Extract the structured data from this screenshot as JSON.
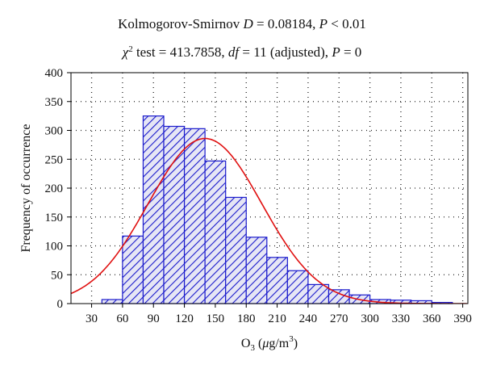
{
  "title": {
    "line1": {
      "a": "Kolmogorov-Smirnov ",
      "D": "D",
      "b": " = 0.08184, ",
      "P": "P",
      "c": " < 0.01"
    },
    "line2": {
      "chi": "χ",
      "sup": "2",
      "a": " test = 413.7858, ",
      "df": "df",
      "b": " = 11 (adjusted), ",
      "P": "P",
      "c": " = 0"
    }
  },
  "axes": {
    "ylabel": "Frequency of occurrence",
    "xlabel": {
      "a": "O",
      "sub": "3",
      "b": " (",
      "mu": "μ",
      "c": "g/m",
      "sup": "3",
      "d": ")"
    }
  },
  "colors": {
    "bar_stroke": "#1a1acc",
    "hatch": "#1a1acc",
    "bar_fill": "#e6e6f5",
    "curve": "#e01010",
    "axis": "#000000"
  },
  "chart_data": {
    "type": "bar",
    "style": "histogram with diagonal hatch and fitted normal curve",
    "bin_width": 20,
    "bins": [
      {
        "start": 20,
        "end": 40,
        "count": 0
      },
      {
        "start": 40,
        "end": 60,
        "count": 7
      },
      {
        "start": 60,
        "end": 80,
        "count": 117
      },
      {
        "start": 80,
        "end": 100,
        "count": 325
      },
      {
        "start": 100,
        "end": 120,
        "count": 307
      },
      {
        "start": 120,
        "end": 140,
        "count": 303
      },
      {
        "start": 140,
        "end": 160,
        "count": 247
      },
      {
        "start": 160,
        "end": 180,
        "count": 184
      },
      {
        "start": 180,
        "end": 200,
        "count": 115
      },
      {
        "start": 200,
        "end": 220,
        "count": 80
      },
      {
        "start": 220,
        "end": 240,
        "count": 57
      },
      {
        "start": 240,
        "end": 260,
        "count": 33
      },
      {
        "start": 260,
        "end": 280,
        "count": 24
      },
      {
        "start": 280,
        "end": 300,
        "count": 15
      },
      {
        "start": 300,
        "end": 320,
        "count": 7
      },
      {
        "start": 320,
        "end": 340,
        "count": 6
      },
      {
        "start": 340,
        "end": 360,
        "count": 5
      },
      {
        "start": 360,
        "end": 380,
        "count": 2
      }
    ],
    "fitted_curve": {
      "type": "normal",
      "mean": 140,
      "sd": 55,
      "peak": 286
    },
    "xlim": [
      10,
      395
    ],
    "ylim": [
      0,
      400
    ],
    "xticks": [
      30,
      60,
      90,
      120,
      150,
      180,
      210,
      240,
      270,
      300,
      330,
      360,
      390
    ],
    "yticks": [
      0,
      50,
      100,
      150,
      200,
      250,
      300,
      350,
      400
    ],
    "grid": true
  }
}
